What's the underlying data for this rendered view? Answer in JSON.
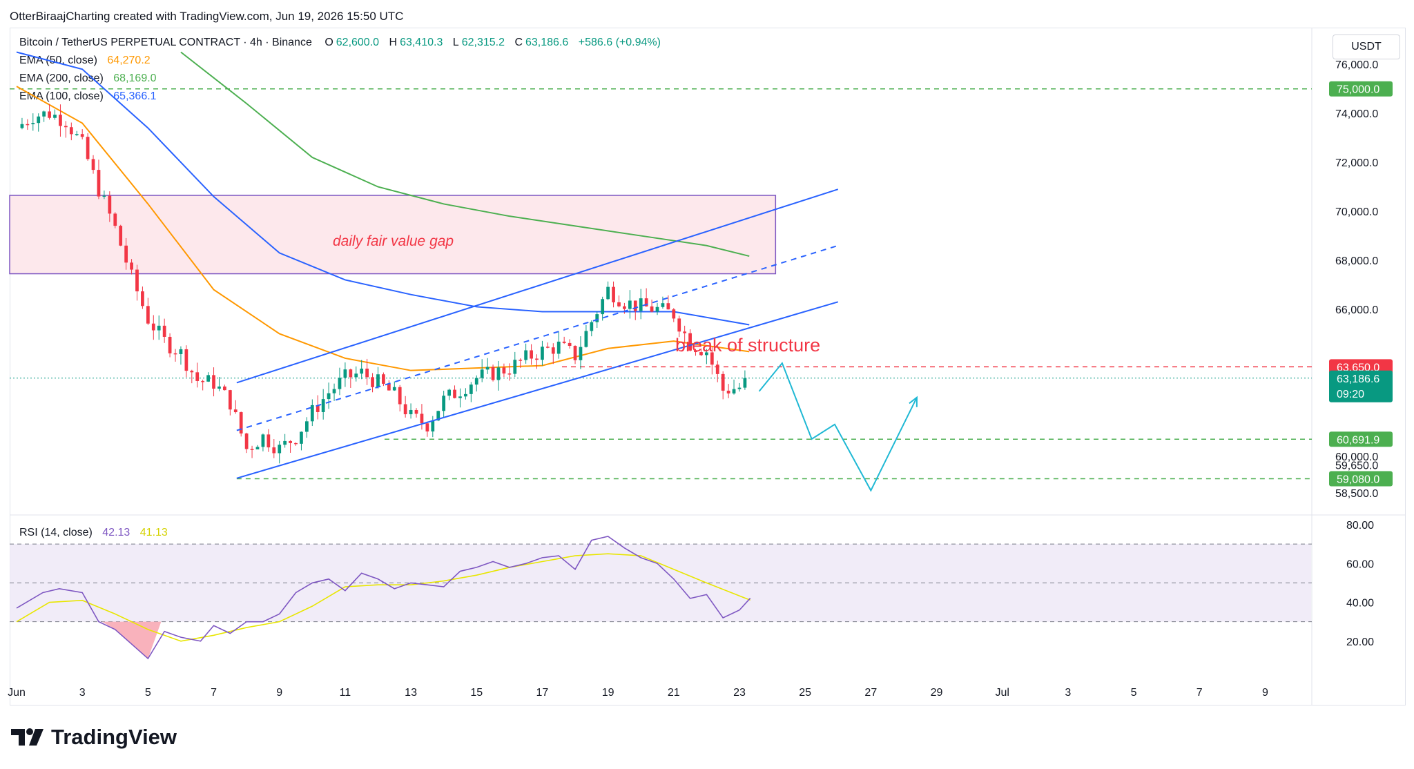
{
  "header": {
    "credit": "OtterBiraajCharting created with TradingView.com, Jun 19, 2026 15:50 UTC"
  },
  "legend": {
    "symbol": "Bitcoin / TetherUS PERPETUAL CONTRACT · 4h · Binance",
    "o_label": "O",
    "o": "62,600.0",
    "h_label": "H",
    "h": "63,410.3",
    "l_label": "L",
    "l": "62,315.2",
    "c_label": "C",
    "c": "63,186.6",
    "change": "+586.6 (+0.94%)",
    "ema50_label": "EMA (50, close)",
    "ema50": "64,270.2",
    "ema200_label": "EMA (200, close)",
    "ema200": "68,169.0",
    "ema100_label": "EMA (100, close)",
    "ema100": "65,366.1",
    "rsi_label": "RSI (14, close)",
    "rsi": "42.13",
    "rsi_ma": "41.13"
  },
  "currency_button": "USDT",
  "brand": "TradingView",
  "annotations": {
    "fvg": "daily fair value gap",
    "bos": "break of structure"
  },
  "colors": {
    "up": "#089981",
    "down": "#f23645",
    "ema50": "#ff9800",
    "ema100": "#2962ff",
    "ema200": "#4caf50",
    "rsi": "#7e57c2",
    "rsi_ma": "#e8e600",
    "projection": "#1fb8d4",
    "fvg_fill": "#fde8ec",
    "fvg_border": "#7e57c2"
  },
  "chart_data": [
    {
      "type": "candlestick",
      "title": "Bitcoin / TetherUS PERPETUAL CONTRACT · 4h · Binance",
      "x_ticks": [
        "Jun",
        "3",
        "5",
        "7",
        "9",
        "11",
        "13",
        "15",
        "17",
        "19",
        "21",
        "23",
        "25",
        "27",
        "29",
        "Jul",
        "3",
        "5",
        "7",
        "9"
      ],
      "y_ticks": [
        "76,000.0",
        "74,000.0",
        "72,000.0",
        "70,000.0",
        "68,000.0",
        "66,000.0",
        "60,000.0",
        "59,650.0",
        "58,500.0"
      ],
      "ylim": [
        57600,
        77500
      ],
      "price_tags": [
        {
          "value": "75,000.0",
          "kind": "level"
        },
        {
          "value": "63,650.0",
          "kind": "resistance"
        },
        {
          "value": "63,186.6",
          "kind": "last",
          "countdown": "09:20"
        },
        {
          "value": "60,691.9",
          "kind": "level"
        },
        {
          "value": "59,080.0",
          "kind": "level"
        }
      ],
      "horizontal_levels": [
        75000,
        63650,
        60691.9,
        59080
      ],
      "fair_value_gap": {
        "from": 67450,
        "to": 70650
      },
      "close_path": [
        {
          "day": 31.0,
          "close": 73400
        },
        {
          "day": 31.5,
          "close": 73900
        },
        {
          "day": 32.0,
          "close": 74000
        },
        {
          "day": 32.5,
          "close": 73700
        },
        {
          "day": 33.0,
          "close": 72700
        },
        {
          "day": 33.5,
          "close": 70900
        },
        {
          "day": 34.0,
          "close": 69300
        },
        {
          "day": 34.5,
          "close": 67300
        },
        {
          "day": 35.0,
          "close": 65600
        },
        {
          "day": 35.5,
          "close": 64700
        },
        {
          "day": 36.0,
          "close": 64200
        },
        {
          "day": 36.5,
          "close": 63100
        },
        {
          "day": 37.0,
          "close": 63000
        },
        {
          "day": 37.5,
          "close": 62200
        },
        {
          "day": 38.0,
          "close": 60300
        },
        {
          "day": 38.5,
          "close": 60800
        },
        {
          "day": 39.0,
          "close": 60300
        },
        {
          "day": 39.5,
          "close": 60800
        },
        {
          "day": 40.0,
          "close": 61800
        },
        {
          "day": 40.5,
          "close": 62600
        },
        {
          "day": 41.0,
          "close": 63200
        },
        {
          "day": 41.5,
          "close": 63400
        },
        {
          "day": 42.0,
          "close": 63000
        },
        {
          "day": 42.5,
          "close": 62500
        },
        {
          "day": 43.0,
          "close": 61600
        },
        {
          "day": 43.5,
          "close": 61300
        },
        {
          "day": 44.0,
          "close": 62300
        },
        {
          "day": 44.5,
          "close": 62700
        },
        {
          "day": 45.0,
          "close": 63200
        },
        {
          "day": 45.5,
          "close": 63400
        },
        {
          "day": 46.0,
          "close": 63600
        },
        {
          "day": 46.5,
          "close": 64000
        },
        {
          "day": 47.0,
          "close": 64300
        },
        {
          "day": 47.5,
          "close": 64500
        },
        {
          "day": 48.0,
          "close": 64100
        },
        {
          "day": 48.5,
          "close": 65500
        },
        {
          "day": 49.0,
          "close": 66800
        },
        {
          "day": 49.5,
          "close": 66300
        },
        {
          "day": 50.0,
          "close": 66100
        },
        {
          "day": 50.5,
          "close": 66000
        },
        {
          "day": 51.0,
          "close": 65800
        },
        {
          "day": 51.5,
          "close": 64600
        },
        {
          "day": 52.0,
          "close": 64300
        },
        {
          "day": 52.5,
          "close": 62700
        },
        {
          "day": 53.0,
          "close": 62800
        },
        {
          "day": 53.33,
          "close": 63187
        }
      ],
      "series": [
        {
          "name": "EMA (50, close)",
          "points": [
            [
              31,
              75100
            ],
            [
              33,
              73600
            ],
            [
              35,
              70300
            ],
            [
              37,
              66800
            ],
            [
              39,
              65000
            ],
            [
              41,
              64000
            ],
            [
              43,
              63500
            ],
            [
              45,
              63600
            ],
            [
              47,
              63700
            ],
            [
              49,
              64400
            ],
            [
              51,
              64700
            ],
            [
              53.3,
              64270
            ]
          ]
        },
        {
          "name": "EMA (100, close)",
          "points": [
            [
              31,
              76500
            ],
            [
              33,
              75800
            ],
            [
              35,
              73400
            ],
            [
              37,
              70600
            ],
            [
              39,
              68300
            ],
            [
              41,
              67200
            ],
            [
              43,
              66600
            ],
            [
              45,
              66100
            ],
            [
              47,
              65900
            ],
            [
              49,
              65900
            ],
            [
              51,
              65900
            ],
            [
              53.3,
              65366
            ]
          ]
        },
        {
          "name": "EMA (200, close)",
          "points": [
            [
              36,
              76500
            ],
            [
              38,
              74400
            ],
            [
              40,
              72200
            ],
            [
              42,
              71000
            ],
            [
              44,
              70300
            ],
            [
              46,
              69800
            ],
            [
              48,
              69400
            ],
            [
              50,
              69000
            ],
            [
              52,
              68600
            ],
            [
              53.3,
              68169
            ]
          ]
        }
      ],
      "channel": {
        "lower": [
          [
            37.7,
            59100
          ],
          [
            56,
            66300
          ]
        ],
        "upper": [
          [
            37.7,
            63000
          ],
          [
            56,
            70900
          ]
        ],
        "mid": [
          [
            37.7,
            61050
          ],
          [
            56,
            68600
          ]
        ]
      },
      "projection": [
        [
          53.6,
          62650
        ],
        [
          54.3,
          63800
        ],
        [
          55.2,
          60700
        ],
        [
          55.9,
          61300
        ],
        [
          57.0,
          58600
        ],
        [
          58.4,
          62400
        ]
      ]
    },
    {
      "type": "line",
      "title": "RSI (14, close)",
      "y_ticks": [
        "80.00",
        "60.00",
        "40.00",
        "20.00"
      ],
      "ylim": [
        0,
        85
      ],
      "bands": [
        70,
        50,
        30
      ],
      "series": [
        {
          "name": "RSI (14, close)",
          "points": [
            [
              31,
              37
            ],
            [
              31.8,
              45
            ],
            [
              32.3,
              47
            ],
            [
              33,
              45
            ],
            [
              33.5,
              30
            ],
            [
              34,
              26
            ],
            [
              34.6,
              17
            ],
            [
              35,
              11
            ],
            [
              35.5,
              25
            ],
            [
              36,
              22
            ],
            [
              36.6,
              20
            ],
            [
              37,
              28
            ],
            [
              37.5,
              24
            ],
            [
              38,
              30
            ],
            [
              38.5,
              30
            ],
            [
              39,
              34
            ],
            [
              39.5,
              45
            ],
            [
              40,
              50
            ],
            [
              40.5,
              52
            ],
            [
              41,
              46
            ],
            [
              41.5,
              55
            ],
            [
              42,
              52
            ],
            [
              42.5,
              47
            ],
            [
              43,
              50
            ],
            [
              43.5,
              49
            ],
            [
              44,
              48
            ],
            [
              44.5,
              56
            ],
            [
              45,
              58
            ],
            [
              45.5,
              61
            ],
            [
              46,
              58
            ],
            [
              46.5,
              60
            ],
            [
              47,
              63
            ],
            [
              47.5,
              64
            ],
            [
              48,
              57
            ],
            [
              48.5,
              72
            ],
            [
              49,
              74
            ],
            [
              49.5,
              68
            ],
            [
              50,
              63
            ],
            [
              50.5,
              60
            ],
            [
              51,
              52
            ],
            [
              51.5,
              42
            ],
            [
              52,
              44
            ],
            [
              52.5,
              32
            ],
            [
              53,
              36
            ],
            [
              53.33,
              42.13
            ]
          ]
        },
        {
          "name": "RSI-based MA",
          "points": [
            [
              31,
              30
            ],
            [
              32,
              40
            ],
            [
              33,
              41
            ],
            [
              34,
              34
            ],
            [
              35,
              26
            ],
            [
              36,
              20
            ],
            [
              37,
              23
            ],
            [
              38,
              27
            ],
            [
              39,
              30
            ],
            [
              40,
              38
            ],
            [
              41,
              48
            ],
            [
              42,
              49
            ],
            [
              43,
              49
            ],
            [
              44,
              51
            ],
            [
              45,
              54
            ],
            [
              46,
              58
            ],
            [
              47,
              61
            ],
            [
              48,
              64
            ],
            [
              49,
              65
            ],
            [
              50,
              64
            ],
            [
              51,
              57
            ],
            [
              52,
              50
            ],
            [
              53.33,
              41.13
            ]
          ]
        }
      ]
    }
  ]
}
